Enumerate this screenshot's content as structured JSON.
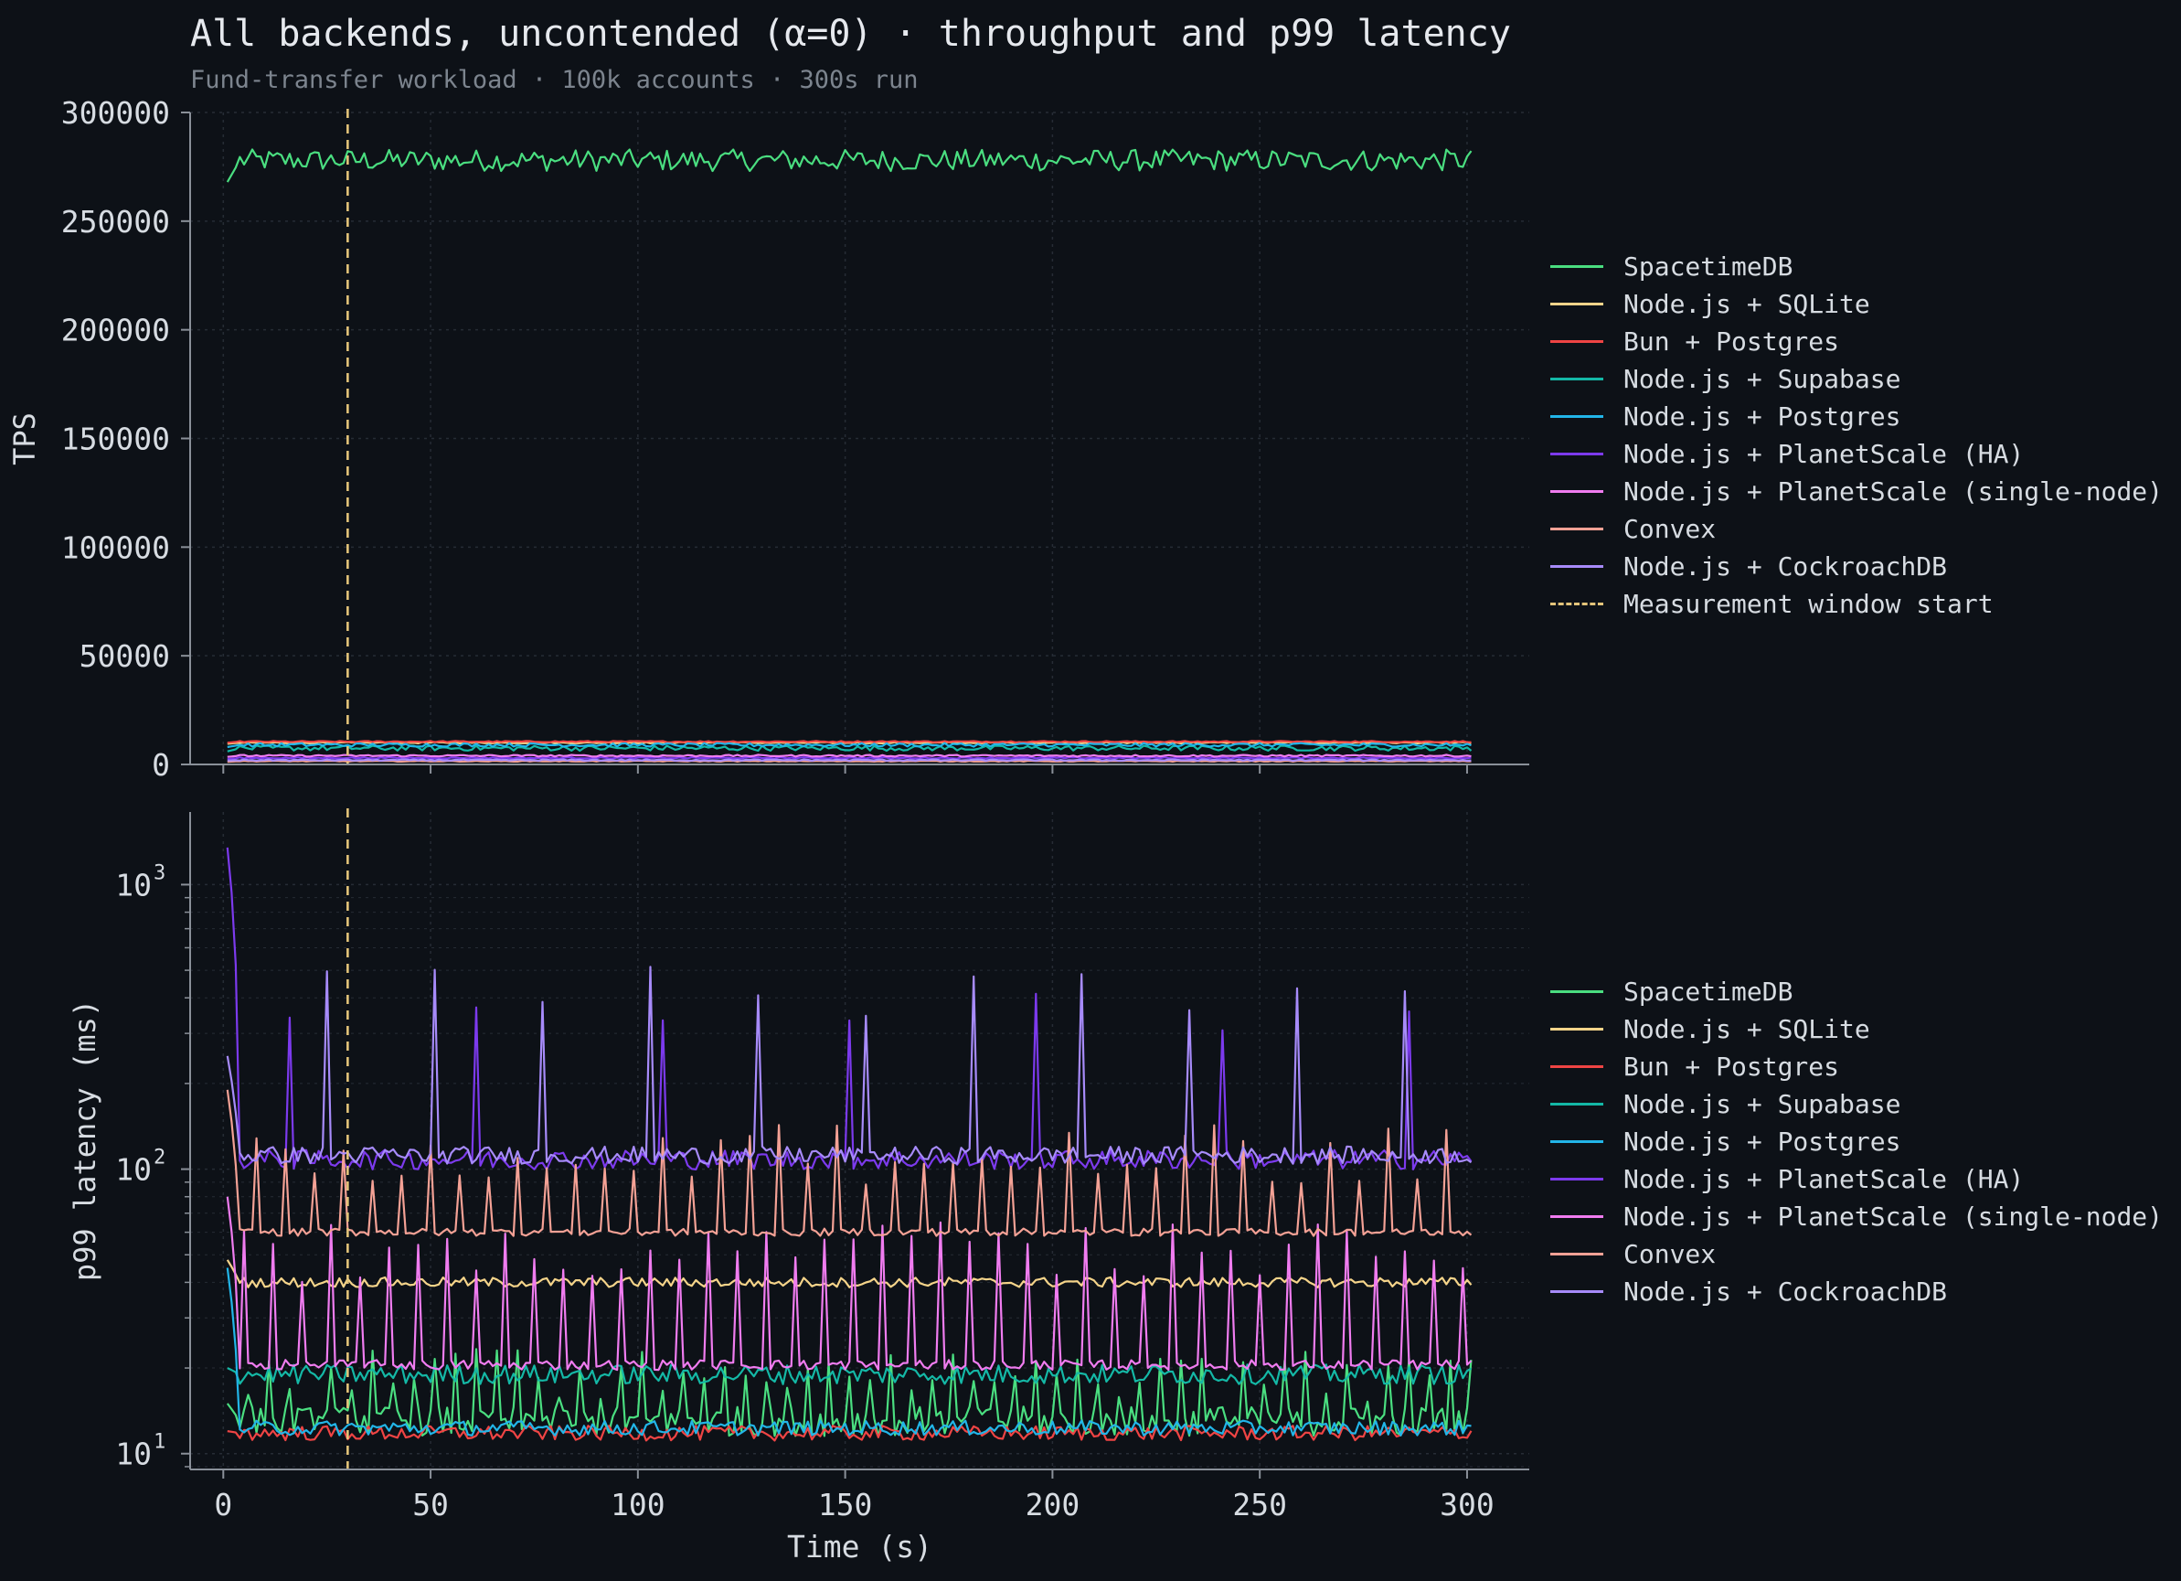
{
  "figure": {
    "title": "All backends, uncontended (α=0) · throughput and p99 latency",
    "subtitle": "Fund-transfer workload · 100k accounts · 300s run"
  },
  "colors": {
    "background": "#0d1117",
    "grid": "#262c35",
    "axis": "#8a9099",
    "text": "#d7dce2"
  },
  "chart_data": [
    {
      "type": "line",
      "panel": "throughput",
      "title": "",
      "xlabel": "",
      "ylabel": "TPS",
      "xlim": [
        -8,
        315
      ],
      "ylim": [
        0,
        300000
      ],
      "xticks": [
        0,
        50,
        100,
        150,
        200,
        250,
        300
      ],
      "yticks": [
        0,
        50000,
        100000,
        150000,
        200000,
        250000,
        300000
      ],
      "ytick_labels": [
        "0",
        "50000",
        "100000",
        "150000",
        "200000",
        "250000",
        "300000"
      ],
      "grid": true,
      "legend_position": "right",
      "series": [
        {
          "name": "SpacetimeDB",
          "color": "#4ade80",
          "mean": 278000,
          "noise": 5000,
          "start": 268000
        },
        {
          "name": "Node.js + SQLite",
          "color": "#f5d48a",
          "mean": 10000,
          "noise": 300,
          "start": 9500
        },
        {
          "name": "Bun + Postgres",
          "color": "#ef4444",
          "mean": 10500,
          "noise": 300,
          "start": 10000
        },
        {
          "name": "Node.js + Supabase",
          "color": "#14b8a6",
          "mean": 7500,
          "noise": 1200,
          "start": 6000
        },
        {
          "name": "Node.js + Postgres",
          "color": "#22b5e8",
          "mean": 9000,
          "noise": 800,
          "start": 8000
        },
        {
          "name": "Node.js + PlanetScale (HA)",
          "color": "#7c3aed",
          "mean": 3000,
          "noise": 300,
          "start": 2500
        },
        {
          "name": "Node.js + PlanetScale (single-node)",
          "color": "#f07cf0",
          "mean": 4000,
          "noise": 400,
          "start": 3500
        },
        {
          "name": "Convex",
          "color": "#f4a195",
          "mean": 1500,
          "noise": 200,
          "start": 1200
        },
        {
          "name": "Node.js + CockroachDB",
          "color": "#a78bfa",
          "mean": 2000,
          "noise": 300,
          "start": 1800
        }
      ],
      "annotations": [
        {
          "type": "vline",
          "x": 30,
          "name": "Measurement window start",
          "color": "#e3c47a",
          "style": "dashed"
        }
      ]
    },
    {
      "type": "line",
      "panel": "latency",
      "title": "",
      "xlabel": "Time (s)",
      "ylabel": "p99 latency (ms)",
      "yscale": "log",
      "xlim": [
        -8,
        315
      ],
      "ylim": [
        8.8,
        1800
      ],
      "xticks": [
        0,
        50,
        100,
        150,
        200,
        250,
        300
      ],
      "xtick_labels": [
        "0",
        "50",
        "100",
        "150",
        "200",
        "250",
        "300"
      ],
      "yticks": [
        10,
        100,
        1000
      ],
      "ytick_labels": [
        "10",
        "10",
        "10"
      ],
      "ytick_exponents": [
        "1",
        "2",
        "3"
      ],
      "grid": true,
      "legend_position": "right",
      "series": [
        {
          "name": "SpacetimeDB",
          "color": "#4ade80",
          "mean": 13,
          "noise": 0.12,
          "spike_every": 5,
          "spike_value": 18,
          "start": 15
        },
        {
          "name": "Node.js + SQLite",
          "color": "#f5d48a",
          "mean": 40,
          "noise": 0.04,
          "start": 48
        },
        {
          "name": "Bun + Postgres",
          "color": "#ef4444",
          "mean": 11.8,
          "noise": 0.06,
          "start": 12
        },
        {
          "name": "Node.js + Supabase",
          "color": "#14b8a6",
          "mean": 19,
          "noise": 0.08,
          "start": 20
        },
        {
          "name": "Node.js + Postgres",
          "color": "#22b5e8",
          "mean": 12.3,
          "noise": 0.06,
          "start": 45
        },
        {
          "name": "Node.js + PlanetScale (HA)",
          "color": "#7c3aed",
          "mean": 108,
          "noise": 0.08,
          "spike_every": 45,
          "spike_value": 320,
          "start": 1350
        },
        {
          "name": "Node.js + PlanetScale (single-node)",
          "color": "#f07cf0",
          "mean": 20.5,
          "noise": 0.04,
          "spike_every": 7,
          "spike_value": 50,
          "start": 80
        },
        {
          "name": "Convex",
          "color": "#f4a195",
          "mean": 60,
          "noise": 0.03,
          "spike_every": 7,
          "spike_value": 110,
          "start": 190
        },
        {
          "name": "Node.js + CockroachDB",
          "color": "#a78bfa",
          "mean": 112,
          "noise": 0.07,
          "spike_every": 26,
          "spike_value": 420,
          "start": 250
        }
      ],
      "annotations": [
        {
          "type": "vline",
          "x": 30,
          "name": "Measurement window start",
          "color": "#e3c47a",
          "style": "dashed"
        }
      ]
    }
  ],
  "legend_top": [
    {
      "label": "SpacetimeDB",
      "color": "#4ade80",
      "style": "solid"
    },
    {
      "label": "Node.js + SQLite",
      "color": "#f5d48a",
      "style": "solid"
    },
    {
      "label": "Bun + Postgres",
      "color": "#ef4444",
      "style": "solid"
    },
    {
      "label": "Node.js + Supabase",
      "color": "#14b8a6",
      "style": "solid"
    },
    {
      "label": "Node.js + Postgres",
      "color": "#22b5e8",
      "style": "solid"
    },
    {
      "label": "Node.js + PlanetScale (HA)",
      "color": "#7c3aed",
      "style": "solid"
    },
    {
      "label": "Node.js + PlanetScale (single-node)",
      "color": "#f07cf0",
      "style": "solid"
    },
    {
      "label": "Convex",
      "color": "#f4a195",
      "style": "solid"
    },
    {
      "label": "Node.js + CockroachDB",
      "color": "#a78bfa",
      "style": "solid"
    },
    {
      "label": "Measurement window start",
      "color": "#e3c47a",
      "style": "dashed"
    }
  ],
  "legend_bottom": [
    {
      "label": "SpacetimeDB",
      "color": "#4ade80",
      "style": "solid"
    },
    {
      "label": "Node.js + SQLite",
      "color": "#f5d48a",
      "style": "solid"
    },
    {
      "label": "Bun + Postgres",
      "color": "#ef4444",
      "style": "solid"
    },
    {
      "label": "Node.js + Supabase",
      "color": "#14b8a6",
      "style": "solid"
    },
    {
      "label": "Node.js + Postgres",
      "color": "#22b5e8",
      "style": "solid"
    },
    {
      "label": "Node.js + PlanetScale (HA)",
      "color": "#7c3aed",
      "style": "solid"
    },
    {
      "label": "Node.js + PlanetScale (single-node)",
      "color": "#f07cf0",
      "style": "solid"
    },
    {
      "label": "Convex",
      "color": "#f4a195",
      "style": "solid"
    },
    {
      "label": "Node.js + CockroachDB",
      "color": "#a78bfa",
      "style": "solid"
    }
  ]
}
